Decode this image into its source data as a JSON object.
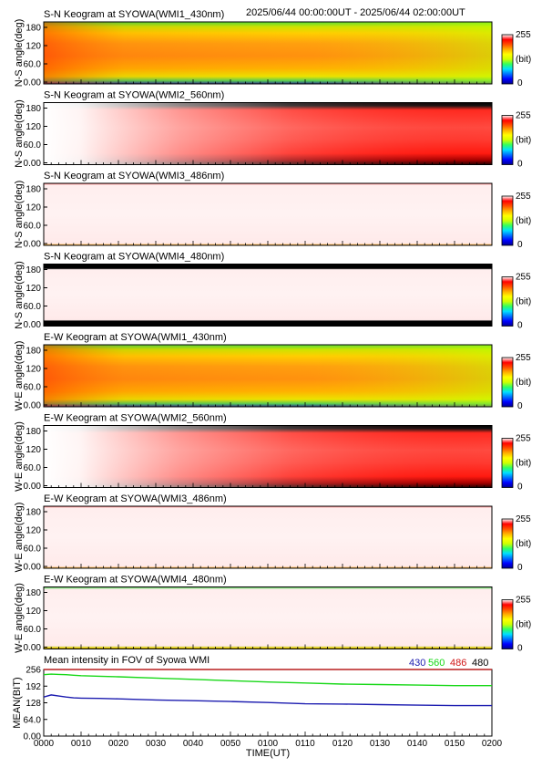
{
  "header": {
    "time_range": "2025/06/44 00:00:00UT - 2025/06/44 02:00:00UT"
  },
  "colors": {
    "colorbar": [
      "#000090",
      "#0000ff",
      "#0070ff",
      "#00e0ff",
      "#30ff60",
      "#d0ff00",
      "#ffff00",
      "#ffb000",
      "#ff5000",
      "#ff0000",
      "#ffffff"
    ],
    "series_430": "#1c1cb0",
    "series_560": "#18d818",
    "series_486": "#d01818",
    "series_480": "#000000"
  },
  "colorbar": {
    "max_label": "255",
    "unit_label": "(bit)",
    "min_label": "0"
  },
  "panels": [
    {
      "title": "S-N Keogram at SYOWA(WMI1_430nm)",
      "ylabel": "N-S angle(deg)",
      "yticks": [
        "180",
        "120",
        "60.0",
        "0.00"
      ],
      "style": "yellow_orange"
    },
    {
      "title": "S-N Keogram at SYOWA(WMI2_560nm)",
      "ylabel": "N-S angle(deg)",
      "yticks": [
        "180",
        "120",
        "60.0",
        "0.00"
      ],
      "style": "white_red"
    },
    {
      "title": "S-N Keogram at SYOWA(WMI3_486nm)",
      "ylabel": "N-S angle(deg)",
      "yticks": [
        "180",
        "120",
        "60.0",
        "0.00"
      ],
      "style": "pale"
    },
    {
      "title": "S-N Keogram at SYOWA(WMI4_480nm)",
      "ylabel": "N-S angle(deg)",
      "yticks": [
        "180",
        "120",
        "60.0",
        "0.00"
      ],
      "style": "pale_black"
    },
    {
      "title": "E-W Keogram at SYOWA(WMI1_430nm)",
      "ylabel": "W-E angle(deg)",
      "yticks": [
        "180",
        "120",
        "60.0",
        "0.00"
      ],
      "style": "yellow_orange"
    },
    {
      "title": "E-W Keogram at SYOWA(WMI2_560nm)",
      "ylabel": "W-E angle(deg)",
      "yticks": [
        "180",
        "120",
        "60.0",
        "0.00"
      ],
      "style": "white_red"
    },
    {
      "title": "E-W Keogram at SYOWA(WMI3_486nm)",
      "ylabel": "W-E angle(deg)",
      "yticks": [
        "180",
        "120",
        "60.0",
        "0.00"
      ],
      "style": "pale"
    },
    {
      "title": "E-W Keogram at SYOWA(WMI4_480nm)",
      "ylabel": "W-E angle(deg)",
      "yticks": [
        "180",
        "120",
        "60.0",
        "0.00"
      ],
      "style": "pale_green"
    }
  ],
  "chart_data": {
    "type": "line",
    "title": "Mean intensity in FOV of Syowa WMI",
    "xlabel": "TIME(UT)",
    "ylabel": "MEAN(BIT)",
    "ylim": [
      0,
      256
    ],
    "yticks": [
      "256",
      "192",
      "128",
      "64.0",
      "0.00"
    ],
    "xticks": [
      "0000",
      "0010",
      "0020",
      "0030",
      "0040",
      "0050",
      "0100",
      "0110",
      "0120",
      "0130",
      "0140",
      "0150",
      "0200"
    ],
    "x_minutes": [
      0,
      2,
      4,
      6,
      8,
      10,
      15,
      20,
      30,
      40,
      50,
      60,
      70,
      80,
      90,
      100,
      110,
      120
    ],
    "series": [
      {
        "name": "430",
        "values": [
          150,
          158,
          154,
          150,
          147,
          146,
          145,
          143,
          139,
          136,
          133,
          129,
          124,
          123,
          121,
          119,
          117,
          117
        ]
      },
      {
        "name": "560",
        "values": [
          236,
          238,
          237,
          236,
          234,
          232,
          230,
          228,
          223,
          218,
          213,
          208,
          204,
          200,
          198,
          196,
          194,
          194
        ]
      },
      {
        "name": "486",
        "values": [
          256,
          256,
          256,
          256,
          256,
          256,
          256,
          256,
          256,
          256,
          256,
          256,
          256,
          256,
          256,
          256,
          256,
          256
        ]
      },
      {
        "name": "480",
        "values": [
          256,
          256,
          256,
          256,
          256,
          256,
          256,
          256,
          256,
          256,
          256,
          256,
          256,
          256,
          256,
          256,
          256,
          256
        ]
      }
    ]
  }
}
